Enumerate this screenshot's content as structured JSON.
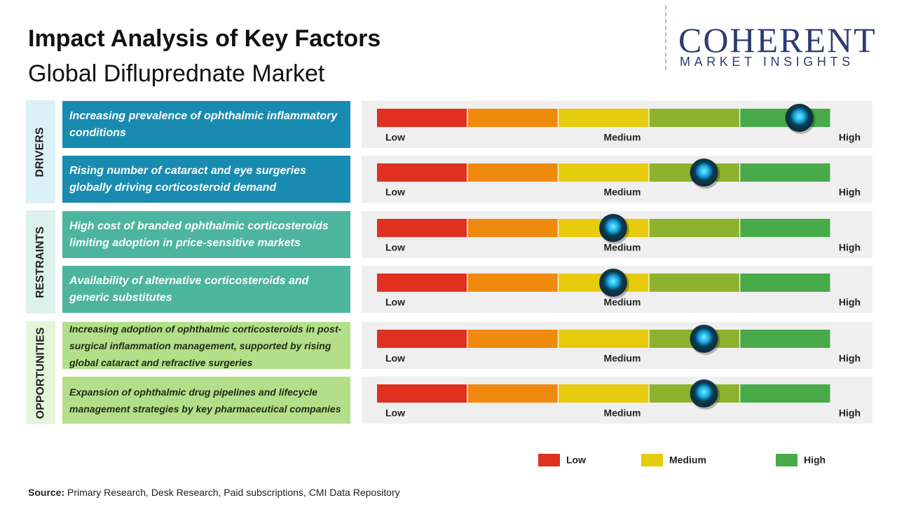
{
  "title": "Impact Analysis of Key Factors",
  "subtitle": "Global Difluprednate Market",
  "logo": {
    "name": "COHERENT",
    "tagline": "MARKET INSIGHTS"
  },
  "chart_data": {
    "type": "impact",
    "xlim": [
      0,
      100
    ],
    "xticks": [
      {
        "value": 0,
        "label": "Low"
      },
      {
        "value": 50,
        "label": "Medium"
      },
      {
        "value": 100,
        "label": "High"
      }
    ],
    "scale_colors": [
      "#e0301f",
      "#ef8a0f",
      "#e6cb0e",
      "#8db22e",
      "#48aa48"
    ],
    "groups": [
      {
        "name": "DRIVERS",
        "color": "#1a8bb0",
        "side_color": "#dcf0f8",
        "text_color": "#ffffff",
        "factors": [
          {
            "label": "Increasing prevalence of ophthalmic inflammatory conditions",
            "value": 93
          },
          {
            "label": "Rising number of cataract and eye surgeries globally driving corticosteroid demand",
            "value": 72
          }
        ]
      },
      {
        "name": "RESTRAINTS",
        "color": "#4db59e",
        "side_color": "#dcf2ec",
        "text_color": "#ffffff",
        "factors": [
          {
            "label": "High cost of branded ophthalmic corticosteroids limiting adoption in price-sensitive markets",
            "value": 52
          },
          {
            "label": "Availability of alternative corticosteroids and generic substitutes",
            "value": 52
          }
        ]
      },
      {
        "name": "OPPORTUNITIES",
        "color": "#b4df8a",
        "side_color": "#e5f5da",
        "text_color": "#1f2a14",
        "factors": [
          {
            "label": "Increasing adoption of ophthalmic corticosteroids in post-surgical inflammation management, supported by rising global cataract and refractive surgeries",
            "value": 72
          },
          {
            "label": "Expansion of ophthalmic drug pipelines and lifecycle management strategies by key pharmaceutical companies",
            "value": 72
          }
        ]
      }
    ],
    "legend": [
      {
        "name": "Low",
        "color": "#e0301f"
      },
      {
        "name": "Medium",
        "color": "#e6cb0e"
      },
      {
        "name": "High",
        "color": "#48aa48"
      }
    ]
  },
  "source": {
    "label": "Source:",
    "text": "Primary Research, Desk Research, Paid subscriptions, CMI Data Repository"
  }
}
